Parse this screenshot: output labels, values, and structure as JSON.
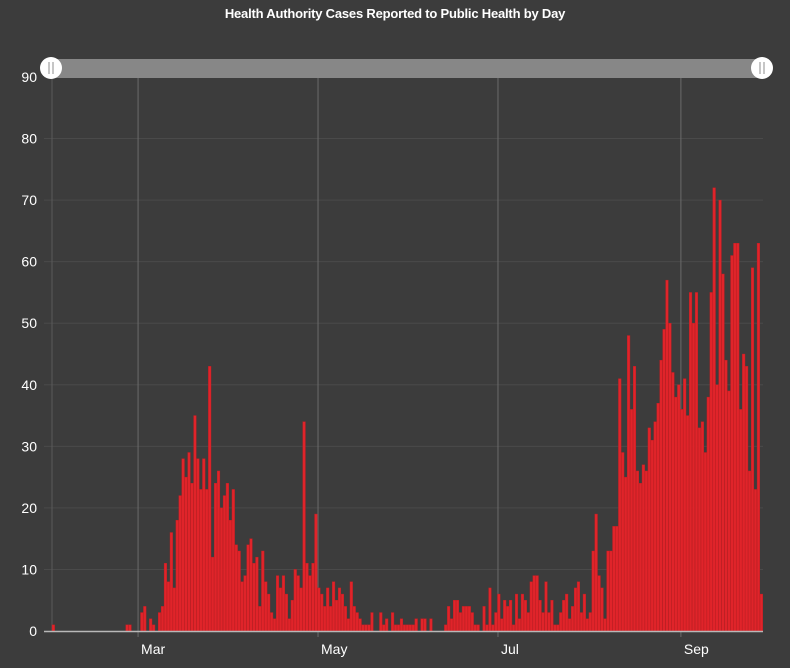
{
  "chart_data": {
    "type": "bar",
    "title": "Health Authority Cases Reported to Public Health by Day",
    "xlabel": "",
    "ylabel": "",
    "ylim": [
      0,
      90
    ],
    "yticks": [
      0,
      10,
      20,
      30,
      40,
      50,
      60,
      70,
      80,
      90
    ],
    "xtick_labels": [
      "Mar",
      "May",
      "Jul",
      "Sep"
    ],
    "grid": true,
    "start_date": "Feb 1",
    "series": [
      {
        "name": "Cases",
        "color": "#e0242a",
        "values": [
          1,
          0,
          0,
          0,
          0,
          0,
          0,
          0,
          0,
          0,
          0,
          0,
          0,
          0,
          0,
          0,
          0,
          0,
          0,
          0,
          0,
          0,
          0,
          0,
          0,
          1,
          1,
          0,
          0,
          0,
          3,
          4,
          0,
          2,
          1,
          0,
          3,
          4,
          11,
          8,
          16,
          7,
          18,
          22,
          28,
          25,
          29,
          24,
          35,
          28,
          23,
          28,
          23,
          43,
          12,
          24,
          26,
          20,
          22,
          24,
          18,
          23,
          14,
          13,
          8,
          9,
          14,
          15,
          11,
          12,
          4,
          13,
          8,
          6,
          3,
          2,
          9,
          7,
          9,
          6,
          2,
          5,
          10,
          9,
          7,
          34,
          11,
          9,
          11,
          19,
          7,
          6,
          4,
          7,
          4,
          8,
          5,
          7,
          6,
          4,
          2,
          8,
          4,
          3,
          2,
          1,
          1,
          1,
          3,
          0,
          0,
          3,
          1,
          2,
          0,
          3,
          1,
          1,
          2,
          1,
          1,
          1,
          1,
          2,
          0,
          2,
          2,
          0,
          2,
          0,
          0,
          0,
          0,
          1,
          4,
          2,
          5,
          5,
          3,
          4,
          4,
          4,
          3,
          1,
          1,
          0,
          4,
          1,
          7,
          1,
          3,
          6,
          2,
          5,
          4,
          5,
          1,
          6,
          2,
          6,
          5,
          3,
          8,
          9,
          9,
          5,
          3,
          8,
          3,
          5,
          1,
          1,
          3,
          5,
          6,
          2,
          4,
          7,
          8,
          3,
          6,
          2,
          3,
          13,
          19,
          9,
          7,
          2,
          13,
          13,
          17,
          17,
          41,
          29,
          25,
          48,
          36,
          43,
          26,
          24,
          27,
          26,
          33,
          31,
          34,
          37,
          44,
          49,
          57,
          50,
          42,
          38,
          40,
          36,
          41,
          35,
          55,
          50,
          55,
          33,
          34,
          29,
          38,
          55,
          72,
          40,
          70,
          58,
          44,
          39,
          61,
          63,
          63,
          36,
          45,
          43,
          26,
          59,
          23,
          63,
          6
        ]
      }
    ]
  }
}
